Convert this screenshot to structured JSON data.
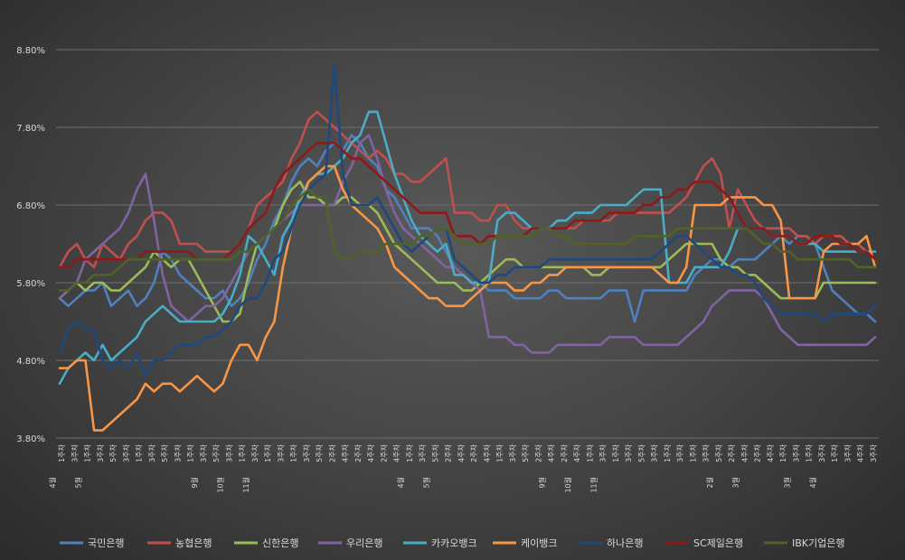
{
  "chart_data": {
    "type": "line",
    "title": "",
    "xlabel": "",
    "ylabel": "",
    "ylim": [
      3.8,
      8.8
    ],
    "y_ticks": [
      "3.80%",
      "4.80%",
      "5.80%",
      "6.80%",
      "7.80%",
      "8.80%"
    ],
    "grid": true,
    "legend_position": "bottom",
    "x_tick_labels": [
      "1주차",
      "3주차",
      "1주차",
      "3주차",
      "5주차",
      "3주차",
      "1주차",
      "3주차",
      "5주차",
      "3주차",
      "1주차",
      "3주차",
      "5주차",
      "3주차",
      "1주차",
      "3주차",
      "1주차",
      "3주차",
      "1주차",
      "3주차",
      "5주차",
      "2주차",
      "4주차",
      "2주차",
      "4주차",
      "2주차",
      "4주차",
      "1주차",
      "3주차",
      "5주차",
      "2주차",
      "4주차",
      "2주차",
      "4주차",
      "1주차",
      "3주차",
      "5주차",
      "2주차",
      "4주차",
      "2주차",
      "4주차",
      "1주차",
      "3주차",
      "1주차",
      "3주차",
      "5주차",
      "3주차",
      "1주차",
      "3주차",
      "1주차",
      "3주차",
      "5주차",
      "2주차",
      "4주차",
      "2주차",
      "4주차",
      "1주차",
      "3주차",
      "1주차",
      "3주차",
      "1주차",
      "3주차",
      "4주차",
      "3주차"
    ],
    "x_group_labels": [
      "4월",
      "5월",
      "9월",
      "10월",
      "11월",
      "4월",
      "5월",
      "9월",
      "10월",
      "11월",
      "2월",
      "3월",
      "3월",
      "4월"
    ],
    "series": [
      {
        "name": "국민은행",
        "color": "#4f81bd",
        "values": [
          5.6,
          5.5,
          5.6,
          5.7,
          5.7,
          5.8,
          5.5,
          5.6,
          5.7,
          5.5,
          5.6,
          5.8,
          6.2,
          6.1,
          5.9,
          5.8,
          5.7,
          5.6,
          5.6,
          5.7,
          5.5,
          5.6,
          5.8,
          6.1,
          6.3,
          6.6,
          6.8,
          7.1,
          7.3,
          7.4,
          7.3,
          7.5,
          7.6,
          7.5,
          7.7,
          7.6,
          7.4,
          7.3,
          7.0,
          6.9,
          6.7,
          6.5,
          6.5,
          6.5,
          6.4,
          6.2,
          6.0,
          5.9,
          5.8,
          5.8,
          5.7,
          5.7,
          5.7,
          5.6,
          5.6,
          5.6,
          5.6,
          5.7,
          5.7,
          5.6,
          5.6,
          5.6,
          5.6,
          5.6,
          5.7,
          5.7,
          5.7,
          5.3,
          5.7,
          5.7,
          5.7,
          5.7,
          5.7,
          5.7,
          5.9,
          6.0,
          6.1,
          6.1,
          6.0,
          6.1,
          6.1,
          6.1,
          6.2,
          6.3,
          6.4,
          6.3,
          6.4,
          6.4,
          6.3,
          6.0,
          5.7,
          5.6,
          5.5,
          5.4,
          5.4,
          5.3
        ]
      },
      {
        "name": "농협은행",
        "color": "#c0504d",
        "values": [
          6.0,
          6.2,
          6.3,
          6.1,
          6.0,
          6.3,
          6.2,
          6.1,
          6.3,
          6.4,
          6.6,
          6.7,
          6.7,
          6.6,
          6.3,
          6.3,
          6.3,
          6.2,
          6.2,
          6.2,
          6.2,
          6.3,
          6.5,
          6.8,
          6.9,
          7.0,
          7.1,
          7.4,
          7.6,
          7.9,
          8.0,
          7.9,
          7.8,
          7.7,
          7.6,
          7.5,
          7.4,
          7.5,
          7.4,
          7.2,
          7.2,
          7.1,
          7.1,
          7.2,
          7.3,
          7.4,
          6.7,
          6.7,
          6.7,
          6.6,
          6.6,
          6.8,
          6.8,
          6.6,
          6.5,
          6.5,
          6.5,
          6.5,
          6.5,
          6.5,
          6.5,
          6.6,
          6.6,
          6.6,
          6.6,
          6.7,
          6.7,
          6.7,
          6.7,
          6.7,
          6.7,
          6.7,
          6.8,
          6.9,
          7.1,
          7.3,
          7.4,
          7.2,
          6.5,
          7.0,
          6.8,
          6.6,
          6.5,
          6.5,
          6.5,
          6.5,
          6.4,
          6.4,
          6.3,
          6.4,
          6.4,
          6.4,
          6.3,
          6.3,
          6.2,
          6.1
        ]
      },
      {
        "name": "신한은행",
        "color": "#9bbb59",
        "values": [
          5.6,
          5.7,
          5.8,
          5.7,
          5.8,
          5.8,
          5.7,
          5.7,
          5.8,
          5.9,
          6.0,
          6.2,
          6.1,
          6.0,
          6.1,
          6.1,
          5.9,
          5.7,
          5.5,
          5.3,
          5.3,
          5.4,
          5.9,
          6.3,
          6.4,
          6.5,
          6.8,
          7.0,
          7.1,
          6.9,
          6.9,
          6.8,
          6.8,
          6.9,
          6.9,
          6.8,
          6.8,
          6.7,
          6.5,
          6.3,
          6.2,
          6.1,
          6.0,
          5.9,
          5.8,
          5.8,
          5.8,
          5.7,
          5.7,
          5.8,
          5.9,
          6.0,
          6.1,
          6.1,
          6.0,
          6.0,
          6.0,
          6.0,
          6.0,
          6.0,
          6.0,
          6.0,
          5.9,
          5.9,
          6.0,
          6.0,
          6.0,
          6.0,
          6.0,
          6.0,
          6.0,
          6.1,
          6.2,
          6.3,
          6.3,
          6.3,
          6.3,
          6.1,
          6.0,
          6.0,
          5.9,
          5.9,
          5.8,
          5.7,
          5.6,
          5.6,
          5.6,
          5.6,
          5.6,
          5.8,
          5.8,
          5.8,
          5.8,
          5.8,
          5.8,
          5.8
        ]
      },
      {
        "name": "우리은행",
        "color": "#8064a2",
        "values": [
          5.6,
          5.7,
          5.8,
          6.1,
          6.2,
          6.3,
          6.4,
          6.5,
          6.7,
          7.0,
          7.2,
          6.6,
          5.9,
          5.5,
          5.4,
          5.3,
          5.4,
          5.5,
          5.5,
          5.6,
          5.8,
          6.0,
          6.2,
          6.3,
          6.4,
          6.5,
          6.6,
          6.7,
          6.8,
          6.8,
          6.8,
          6.8,
          6.8,
          7.1,
          7.3,
          7.6,
          7.7,
          7.4,
          7.0,
          6.7,
          6.5,
          6.4,
          6.3,
          6.2,
          6.1,
          6.0,
          6.0,
          5.9,
          5.8,
          5.7,
          5.1,
          5.1,
          5.1,
          5.0,
          5.0,
          4.9,
          4.9,
          4.9,
          5.0,
          5.0,
          5.0,
          5.0,
          5.0,
          5.0,
          5.1,
          5.1,
          5.1,
          5.1,
          5.0,
          5.0,
          5.0,
          5.0,
          5.0,
          5.1,
          5.2,
          5.3,
          5.5,
          5.6,
          5.7,
          5.7,
          5.7,
          5.7,
          5.6,
          5.4,
          5.2,
          5.1,
          5.0,
          5.0,
          5.0,
          5.0,
          5.0,
          5.0,
          5.0,
          5.0,
          5.0,
          5.1
        ]
      },
      {
        "name": "카카오뱅크",
        "color": "#4bacc6",
        "values": [
          4.5,
          4.7,
          4.8,
          4.9,
          4.8,
          5.0,
          4.8,
          4.9,
          5.0,
          5.1,
          5.3,
          5.4,
          5.5,
          5.4,
          5.3,
          5.3,
          5.3,
          5.3,
          5.3,
          5.4,
          5.6,
          5.9,
          6.4,
          6.3,
          6.1,
          5.9,
          6.4,
          6.6,
          6.9,
          7.1,
          7.2,
          7.2,
          7.3,
          7.4,
          7.6,
          7.7,
          8.0,
          8.0,
          7.6,
          7.2,
          6.9,
          6.6,
          6.4,
          6.3,
          6.2,
          6.3,
          5.9,
          5.9,
          5.8,
          5.8,
          5.8,
          6.6,
          6.7,
          6.7,
          6.6,
          6.5,
          6.5,
          6.5,
          6.6,
          6.6,
          6.7,
          6.7,
          6.7,
          6.8,
          6.8,
          6.8,
          6.8,
          6.9,
          7.0,
          7.0,
          7.0,
          5.8,
          5.8,
          5.8,
          6.0,
          6.0,
          6.0,
          6.0,
          6.2,
          6.5,
          6.5,
          6.5,
          6.5,
          6.4,
          6.4,
          6.4,
          6.3,
          6.3,
          6.3,
          6.2,
          6.2,
          6.2,
          6.2,
          6.2,
          6.2,
          6.2
        ]
      },
      {
        "name": "케이뱅크",
        "color": "#f79646",
        "values": [
          4.7,
          4.7,
          4.8,
          4.8,
          3.9,
          3.9,
          4.0,
          4.1,
          4.2,
          4.3,
          4.5,
          4.4,
          4.5,
          4.5,
          4.4,
          4.5,
          4.6,
          4.5,
          4.4,
          4.5,
          4.8,
          5.0,
          5.0,
          4.8,
          5.1,
          5.3,
          6.0,
          6.5,
          6.8,
          7.1,
          7.2,
          7.3,
          7.3,
          7.0,
          6.8,
          6.7,
          6.6,
          6.5,
          6.3,
          6.0,
          5.9,
          5.8,
          5.7,
          5.6,
          5.6,
          5.5,
          5.5,
          5.5,
          5.6,
          5.7,
          5.8,
          5.8,
          5.8,
          5.7,
          5.7,
          5.8,
          5.8,
          5.9,
          5.9,
          6.0,
          6.0,
          6.0,
          6.0,
          6.0,
          6.0,
          6.0,
          6.0,
          6.0,
          6.0,
          6.0,
          5.9,
          5.8,
          5.8,
          6.0,
          6.8,
          6.8,
          6.8,
          6.8,
          6.9,
          6.9,
          6.9,
          6.9,
          6.8,
          6.8,
          6.6,
          5.6,
          5.6,
          5.6,
          5.6,
          6.2,
          6.3,
          6.3,
          6.3,
          6.3,
          6.4,
          6.0
        ]
      },
      {
        "name": "하나은행",
        "color": "#1f497d",
        "values": [
          4.9,
          5.2,
          5.3,
          5.2,
          5.2,
          4.8,
          4.7,
          4.8,
          4.7,
          4.9,
          4.6,
          4.8,
          4.8,
          4.9,
          5.0,
          5.0,
          5.0,
          5.1,
          5.1,
          5.2,
          5.3,
          5.5,
          5.6,
          5.6,
          5.8,
          6.1,
          6.2,
          6.5,
          6.8,
          7.0,
          7.1,
          7.2,
          8.6,
          7.2,
          6.8,
          6.8,
          6.8,
          6.9,
          6.7,
          6.5,
          6.3,
          6.2,
          6.3,
          6.4,
          6.5,
          6.5,
          6.1,
          6.0,
          5.9,
          5.8,
          5.8,
          5.9,
          5.9,
          6.0,
          6.0,
          6.0,
          6.0,
          6.1,
          6.1,
          6.1,
          6.1,
          6.1,
          6.1,
          6.1,
          6.1,
          6.1,
          6.1,
          6.1,
          6.1,
          6.1,
          6.2,
          6.3,
          6.4,
          6.4,
          6.3,
          6.2,
          6.1,
          6.0,
          6.0,
          5.9,
          5.9,
          5.8,
          5.6,
          5.5,
          5.4,
          5.4,
          5.4,
          5.4,
          5.4,
          5.3,
          5.4,
          5.4,
          5.4,
          5.4,
          5.4,
          5.5
        ]
      },
      {
        "name": "SC제일은행",
        "color": "#8b1a1a",
        "values": [
          6.0,
          6.0,
          6.1,
          6.1,
          6.1,
          6.1,
          6.1,
          6.1,
          6.1,
          6.1,
          6.2,
          6.2,
          6.2,
          6.2,
          6.2,
          6.2,
          6.1,
          6.1,
          6.1,
          6.1,
          6.2,
          6.3,
          6.5,
          6.6,
          6.7,
          7.0,
          7.2,
          7.3,
          7.4,
          7.5,
          7.6,
          7.6,
          7.6,
          7.5,
          7.4,
          7.4,
          7.3,
          7.2,
          7.1,
          7.0,
          6.9,
          6.8,
          6.7,
          6.7,
          6.7,
          6.7,
          6.4,
          6.4,
          6.4,
          6.3,
          6.4,
          6.4,
          6.4,
          6.4,
          6.4,
          6.5,
          6.5,
          6.5,
          6.5,
          6.5,
          6.6,
          6.6,
          6.6,
          6.6,
          6.7,
          6.7,
          6.7,
          6.7,
          6.8,
          6.8,
          6.9,
          6.9,
          7.0,
          7.0,
          7.1,
          7.1,
          7.1,
          7.0,
          6.9,
          6.7,
          6.5,
          6.5,
          6.5,
          6.4,
          6.4,
          6.4,
          6.3,
          6.3,
          6.4,
          6.4,
          6.4,
          6.3,
          6.3,
          6.2,
          6.2,
          6.1
        ]
      },
      {
        "name": "IBK기업은행",
        "color": "#4f6228",
        "values": [
          5.7,
          5.7,
          5.8,
          5.8,
          5.9,
          5.9,
          5.9,
          6.0,
          6.1,
          6.1,
          6.1,
          6.1,
          6.1,
          6.1,
          6.1,
          6.1,
          6.1,
          6.1,
          6.1,
          6.1,
          6.1,
          6.2,
          6.2,
          6.3,
          6.4,
          6.5,
          6.6,
          6.8,
          6.9,
          7.0,
          6.9,
          6.9,
          6.2,
          6.1,
          6.1,
          6.2,
          6.2,
          6.2,
          6.3,
          6.3,
          6.3,
          6.3,
          6.4,
          6.4,
          6.5,
          6.5,
          6.4,
          6.3,
          6.3,
          6.3,
          6.3,
          6.4,
          6.4,
          6.4,
          6.4,
          6.4,
          6.5,
          6.5,
          6.4,
          6.4,
          6.3,
          6.3,
          6.3,
          6.3,
          6.3,
          6.3,
          6.3,
          6.4,
          6.4,
          6.4,
          6.4,
          6.4,
          6.5,
          6.5,
          6.5,
          6.5,
          6.5,
          6.5,
          6.5,
          6.5,
          6.5,
          6.4,
          6.3,
          6.3,
          6.2,
          6.2,
          6.1,
          6.1,
          6.1,
          6.1,
          6.1,
          6.1,
          6.1,
          6.0,
          6.0,
          6.0
        ]
      }
    ]
  }
}
